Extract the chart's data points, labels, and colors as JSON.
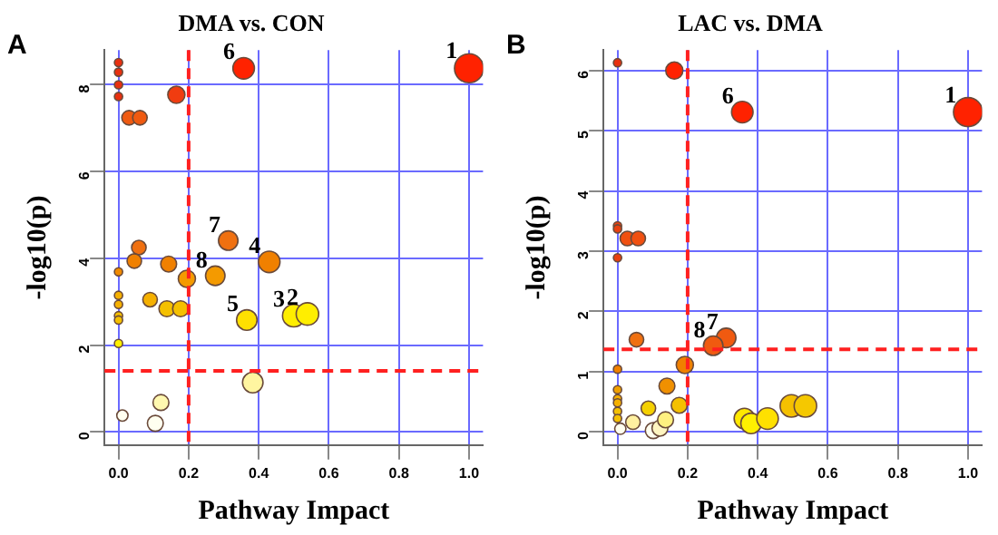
{
  "chart_data": [
    {
      "type": "bubble",
      "title": "DMA vs. CON",
      "xlabel": "Pathway Impact",
      "ylabel": "-log10(p)",
      "annotations": [
        "A",
        {
          "text": "1",
          "x": 1.0,
          "y": 8.38
        },
        {
          "text": "2",
          "x": 0.539,
          "y": 2.72
        },
        {
          "text": "3",
          "x": 0.5,
          "y": 2.68
        },
        {
          "text": "4",
          "x": 0.43,
          "y": 3.92
        },
        {
          "text": "5",
          "x": 0.366,
          "y": 2.58
        },
        {
          "text": "6",
          "x": 0.357,
          "y": 8.38
        },
        {
          "text": "7",
          "x": 0.313,
          "y": 4.41
        },
        {
          "text": "8",
          "x": 0.276,
          "y": 3.6
        }
      ],
      "x": [
        1.0,
        0.357,
        0.0,
        0.0,
        0.0,
        0.0,
        0.165,
        0.03,
        0.061,
        0.313,
        0.058,
        0.43,
        0.045,
        0.143,
        0.0,
        0.195,
        0.276,
        0.0,
        0.0,
        0.0,
        0.0,
        0.09,
        0.138,
        0.177,
        0.366,
        0.5,
        0.539,
        0.0,
        0.383,
        0.121,
        0.011,
        0.105
      ],
      "values": [
        8.38,
        8.38,
        8.51,
        8.29,
        8.0,
        7.73,
        7.77,
        7.24,
        7.24,
        4.41,
        4.25,
        3.92,
        3.94,
        3.87,
        3.69,
        3.53,
        3.6,
        3.15,
        2.94,
        2.68,
        2.58,
        3.05,
        2.84,
        2.84,
        2.58,
        2.68,
        2.72,
        2.04,
        1.14,
        0.68,
        0.38,
        0.2
      ],
      "sizes": [
        1,
        0.55,
        0.08,
        0.08,
        0.08,
        0.08,
        0.35,
        0.25,
        0.25,
        0.45,
        0.25,
        0.55,
        0.25,
        0.3,
        0.08,
        0.35,
        0.45,
        0.08,
        0.08,
        0.08,
        0.08,
        0.25,
        0.3,
        0.3,
        0.5,
        0.6,
        0.6,
        0.08,
        0.5,
        0.3,
        0.15,
        0.3
      ],
      "colors": [
        "#ff2200",
        "#ff2200",
        "#e83010",
        "#e83010",
        "#e83010",
        "#e83010",
        "#f03c10",
        "#f05a10",
        "#f05a10",
        "#f07010",
        "#f07010",
        "#f08000",
        "#f08000",
        "#f08000",
        "#f08a00",
        "#f49a00",
        "#f49a00",
        "#f5b000",
        "#f5b000",
        "#f5c000",
        "#f5c000",
        "#f5b000",
        "#f5c000",
        "#f5c000",
        "#ffe000",
        "#ffee00",
        "#ffee00",
        "#fff000",
        "#fff5a0",
        "#fff8b0",
        "#fffff0",
        "#fffff0"
      ],
      "xlim": [
        -0.04,
        1.04
      ],
      "ylim": [
        -0.3,
        8.8
      ],
      "xticks": [
        {
          "value": 0,
          "label": "0.0"
        },
        {
          "value": 0.2,
          "label": "0.2"
        },
        {
          "value": 0.4,
          "label": "0.4"
        },
        {
          "value": 0.6,
          "label": "0.6"
        },
        {
          "value": 0.8,
          "label": "0.8"
        },
        {
          "value": 1,
          "label": "1.0"
        }
      ],
      "yticks": [
        0,
        2,
        4,
        6,
        8
      ],
      "grid": true,
      "ref_lines": [
        {
          "axis": "x",
          "value": 0.2,
          "color": "#ff2020",
          "line_style": "dashed"
        },
        {
          "axis": "y",
          "value": 1.41,
          "color": "#ff2020",
          "line_style": "dashed"
        }
      ]
    },
    {
      "type": "bubble",
      "title": "LAC vs. DMA",
      "xlabel": "Pathway Impact",
      "ylabel": "-log10(p)",
      "annotations": [
        "B",
        {
          "text": "1",
          "x": 1.0,
          "y": 5.31
        },
        {
          "text": "6",
          "x": 0.356,
          "y": 5.31
        },
        {
          "text": "7",
          "x": 0.31,
          "y": 1.56
        },
        {
          "text": "8",
          "x": 0.273,
          "y": 1.43
        }
      ],
      "x": [
        1.0,
        0.356,
        0.0,
        0.162,
        0.0,
        0.0,
        0.028,
        0.059,
        0.0,
        0.31,
        0.273,
        0.054,
        0.192,
        0.0,
        0.141,
        0.0,
        0.0,
        0.0,
        0.0,
        0.0,
        0.088,
        0.176,
        0.044,
        0.008,
        0.102,
        0.121,
        0.137,
        0.362,
        0.381,
        0.428,
        0.496,
        0.536
      ],
      "values": [
        5.31,
        5.31,
        6.13,
        6.0,
        3.42,
        3.37,
        3.21,
        3.21,
        2.89,
        1.56,
        1.43,
        1.53,
        1.11,
        1.04,
        0.76,
        0.7,
        0.55,
        0.48,
        0.34,
        0.22,
        0.39,
        0.44,
        0.16,
        0.05,
        0.02,
        0.06,
        0.2,
        0.22,
        0.14,
        0.22,
        0.43,
        0.43
      ],
      "sizes": [
        1,
        0.55,
        0.08,
        0.35,
        0.08,
        0.08,
        0.25,
        0.25,
        0.08,
        0.45,
        0.45,
        0.25,
        0.35,
        0.08,
        0.3,
        0.08,
        0.08,
        0.08,
        0.08,
        0.08,
        0.25,
        0.3,
        0.25,
        0.15,
        0.3,
        0.3,
        0.3,
        0.5,
        0.5,
        0.55,
        0.6,
        0.6
      ],
      "colors": [
        "#ff2200",
        "#ff2200",
        "#e83010",
        "#ff2200",
        "#e84010",
        "#e84010",
        "#f05010",
        "#f05010",
        "#e84010",
        "#f05a10",
        "#f05a10",
        "#f07010",
        "#f08000",
        "#f08000",
        "#f09000",
        "#f0a000",
        "#f5b000",
        "#f5b000",
        "#f5c000",
        "#f5c000",
        "#f5d000",
        "#f5c000",
        "#fff0a0",
        "#fffff0",
        "#fffff0",
        "#fff5c0",
        "#fff080",
        "#ffe800",
        "#fff000",
        "#ffe000",
        "#f5c000",
        "#f5c800"
      ],
      "xlim": [
        -0.04,
        1.04
      ],
      "ylim": [
        -0.22,
        6.34
      ],
      "xticks": [
        {
          "value": 0,
          "label": "0.0"
        },
        {
          "value": 0.2,
          "label": "0.2"
        },
        {
          "value": 0.4,
          "label": "0.4"
        },
        {
          "value": 0.6,
          "label": "0.6"
        },
        {
          "value": 0.8,
          "label": "0.8"
        },
        {
          "value": 1,
          "label": "1.0"
        }
      ],
      "yticks": [
        0,
        1,
        2,
        3,
        4,
        5,
        6
      ],
      "grid": true,
      "ref_lines": [
        {
          "axis": "x",
          "value": 0.2,
          "color": "#ff2020",
          "line_style": "dashed"
        },
        {
          "axis": "y",
          "value": 1.37,
          "color": "#ff2020",
          "line_style": "dashed"
        }
      ]
    }
  ]
}
